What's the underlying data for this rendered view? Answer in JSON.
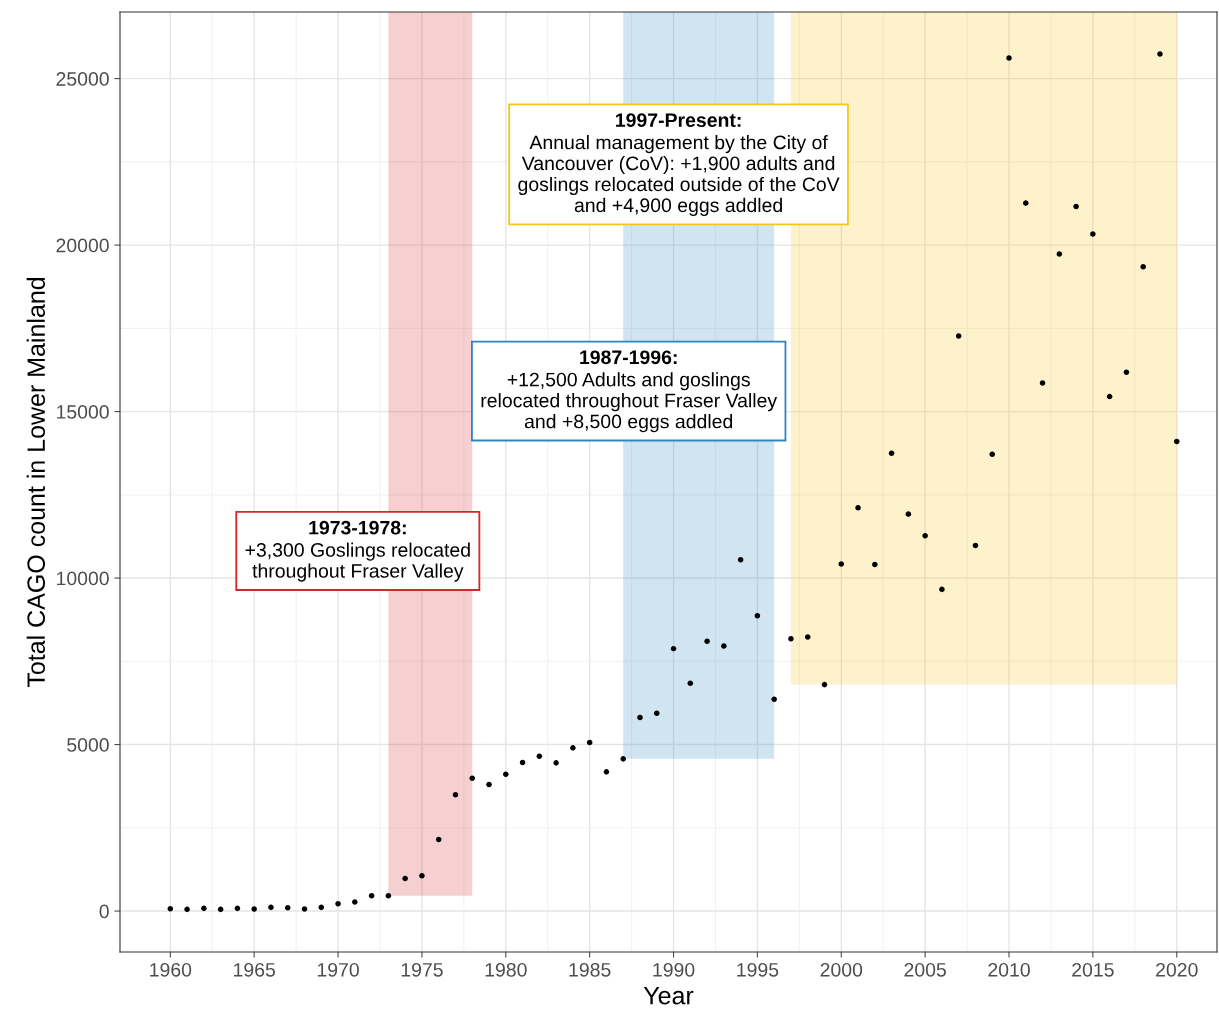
{
  "chart_data": {
    "type": "scatter",
    "xlabel": "Year",
    "ylabel": "Total CAGO count in Lower Mainland",
    "x": [
      1960,
      1961,
      1962,
      1963,
      1964,
      1965,
      1966,
      1967,
      1968,
      1969,
      1970,
      1971,
      1972,
      1973,
      1974,
      1975,
      1976,
      1977,
      1978,
      1979,
      1980,
      1981,
      1982,
      1983,
      1984,
      1985,
      1986,
      1987,
      1988,
      1989,
      1990,
      1991,
      1992,
      1993,
      1994,
      1995,
      1996,
      1997,
      1998,
      1999,
      2000,
      2001,
      2002,
      2003,
      2004,
      2005,
      2006,
      2007,
      2008,
      2009,
      2010,
      2011,
      2012,
      2013,
      2014,
      2015,
      2016,
      2017,
      2018,
      2019,
      2020
    ],
    "series": [
      {
        "color": "#000000",
        "values": [
          70,
          50,
          80,
          50,
          80,
          60,
          110,
          100,
          60,
          110,
          220,
          270,
          460,
          460,
          980,
          1060,
          2150,
          3490,
          3990,
          3800,
          4110,
          4460,
          4650,
          4450,
          4900,
          5060,
          4180,
          4570,
          5810,
          5940,
          7880,
          6840,
          8100,
          7960,
          10550,
          8870,
          6360,
          8180,
          8230,
          6800,
          10420,
          12110,
          10410,
          13750,
          11920,
          11270,
          9660,
          17270,
          10980,
          13720,
          25620,
          21260,
          15860,
          19730,
          21160,
          20330,
          15450,
          16180,
          19350,
          25740,
          14100
        ]
      }
    ],
    "marker": "circle",
    "xlim": [
      1957,
      2022.4
    ],
    "ylim": [
      -1230,
      27000
    ],
    "xticks": [
      1960,
      1965,
      1970,
      1975,
      1980,
      1985,
      1990,
      1995,
      2000,
      2005,
      2010,
      2015,
      2020
    ],
    "yticks": [
      0,
      5000,
      10000,
      15000,
      20000,
      25000
    ],
    "grid": true,
    "bands": [
      {
        "axis": "x",
        "from": 1973,
        "to": 1978,
        "color": "#d62728"
      },
      {
        "axis": "x",
        "from": 1987,
        "to": 1996,
        "color": "#2e86c1"
      },
      {
        "axis": "x",
        "from": 1997,
        "to": 2020,
        "color": "#f5c518"
      }
    ],
    "annotations": [
      "1973-1978:\n+3,300 Goslings relocated\nthroughout Fraser Valley",
      "1987-1996:\n+12,500 Adults and goslings\nrelocated throughout Fraser Valley\nand +8,500 eggs addled",
      "1997-Present:\nAnnual management by the City of\nVancouver (CoV): +1,900 adults and\ngoslings relocated outside of the CoV\nand +4,900 eggs addled"
    ]
  }
}
